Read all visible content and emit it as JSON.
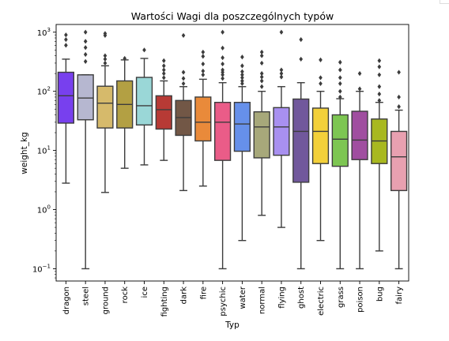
{
  "chart_data": {
    "type": "boxplot",
    "title": "Wartości Wagi dla poszczególnych typów",
    "xlabel": "Typ",
    "ylabel": "weight_kg",
    "yscale": "log",
    "ylim": [
      0.062,
      1350
    ],
    "y_ticks": [
      {
        "base": "10",
        "exp": "−1"
      },
      {
        "base": "10",
        "exp": "0"
      },
      {
        "base": "10",
        "exp": "1"
      },
      {
        "base": "10",
        "exp": "2"
      },
      {
        "base": "10",
        "exp": "3"
      }
    ],
    "grid": false,
    "legend": "none",
    "categories": [
      "dragon",
      "steel",
      "ground",
      "rock",
      "ice",
      "fighting",
      "dark",
      "fire",
      "psychic",
      "water",
      "normal",
      "flying",
      "ghost",
      "electric",
      "grass",
      "poison",
      "bug",
      "fairy"
    ],
    "colors": [
      "#7840ee",
      "#b6b7d0",
      "#d6ba6b",
      "#b3a043",
      "#9ad7d7",
      "#b73a35",
      "#725746",
      "#e98a3a",
      "#ea5c88",
      "#6690ea",
      "#a7a87a",
      "#a890f0",
      "#71589c",
      "#f3d03a",
      "#7dc652",
      "#a04ea0",
      "#a8b820",
      "#e8a0b0"
    ],
    "boxes": [
      {
        "min": 2.8,
        "q1": 29,
        "median": 84,
        "q3": 210,
        "max": 350,
        "outliers": [
          600,
          750,
          900
        ]
      },
      {
        "min": 0.1,
        "q1": 33,
        "median": 77,
        "q3": 190,
        "max": 190,
        "outliers": [
          320,
          420,
          550,
          700,
          1000
        ]
      },
      {
        "min": 1.95,
        "q1": 24,
        "median": 63,
        "q3": 122,
        "max": 270,
        "outliers": [
          300,
          350,
          400,
          880,
          950
        ]
      },
      {
        "min": 5,
        "q1": 24,
        "median": 60,
        "q3": 150,
        "max": 340,
        "outliers": [
          360
        ]
      },
      {
        "min": 5.7,
        "q1": 27,
        "median": 57,
        "q3": 172,
        "max": 360,
        "outliers": [
          500
        ]
      },
      {
        "min": 6.8,
        "q1": 23,
        "median": 49,
        "q3": 84,
        "max": 150,
        "outliers": [
          170,
          200,
          230,
          270,
          330
        ]
      },
      {
        "min": 2.1,
        "q1": 18,
        "median": 36,
        "q3": 70,
        "max": 120,
        "outliers": [
          135,
          165,
          210,
          880
        ]
      },
      {
        "min": 2.5,
        "q1": 14.5,
        "median": 30,
        "q3": 80,
        "max": 160,
        "outliers": [
          190,
          220,
          290,
          390,
          460
        ]
      },
      {
        "min": 0.1,
        "q1": 6.8,
        "median": 30,
        "q3": 65,
        "max": 140,
        "outliers": [
          165,
          190,
          210,
          230,
          290,
          370,
          540,
          1000
        ]
      },
      {
        "min": 0.3,
        "q1": 9.7,
        "median": 28,
        "q3": 65,
        "max": 120,
        "outliers": [
          135,
          150,
          170,
          190,
          215,
          270,
          380
        ]
      },
      {
        "min": 0.8,
        "q1": 7.5,
        "median": 25,
        "q3": 45,
        "max": 100,
        "outliers": [
          120,
          150,
          175,
          200,
          300,
          400,
          460
        ]
      },
      {
        "min": 0.5,
        "q1": 8.3,
        "median": 25,
        "q3": 53,
        "max": 120,
        "outliers": [
          175,
          200,
          230,
          1000
        ]
      },
      {
        "min": 0.1,
        "q1": 2.9,
        "median": 21,
        "q3": 74,
        "max": 140,
        "outliers": [
          350,
          750
        ]
      },
      {
        "min": 0.3,
        "q1": 6,
        "median": 21,
        "q3": 52,
        "max": 100,
        "outliers": [
          135,
          170,
          340
        ]
      },
      {
        "min": 0.1,
        "q1": 5.4,
        "median": 15.5,
        "q3": 40,
        "max": 75,
        "outliers": [
          80,
          100,
          135,
          170,
          230,
          310
        ]
      },
      {
        "min": 0.1,
        "q1": 7,
        "median": 15,
        "q3": 46,
        "max": 100,
        "outliers": [
          110,
          200
        ]
      },
      {
        "min": 0.2,
        "q1": 6,
        "median": 14.5,
        "q3": 34,
        "max": 65,
        "outliers": [
          70,
          90,
          120,
          190,
          260,
          330
        ]
      },
      {
        "min": 0.1,
        "q1": 2.1,
        "median": 7.8,
        "q3": 21,
        "max": 48,
        "outliers": [
          55,
          80,
          210
        ]
      }
    ]
  }
}
